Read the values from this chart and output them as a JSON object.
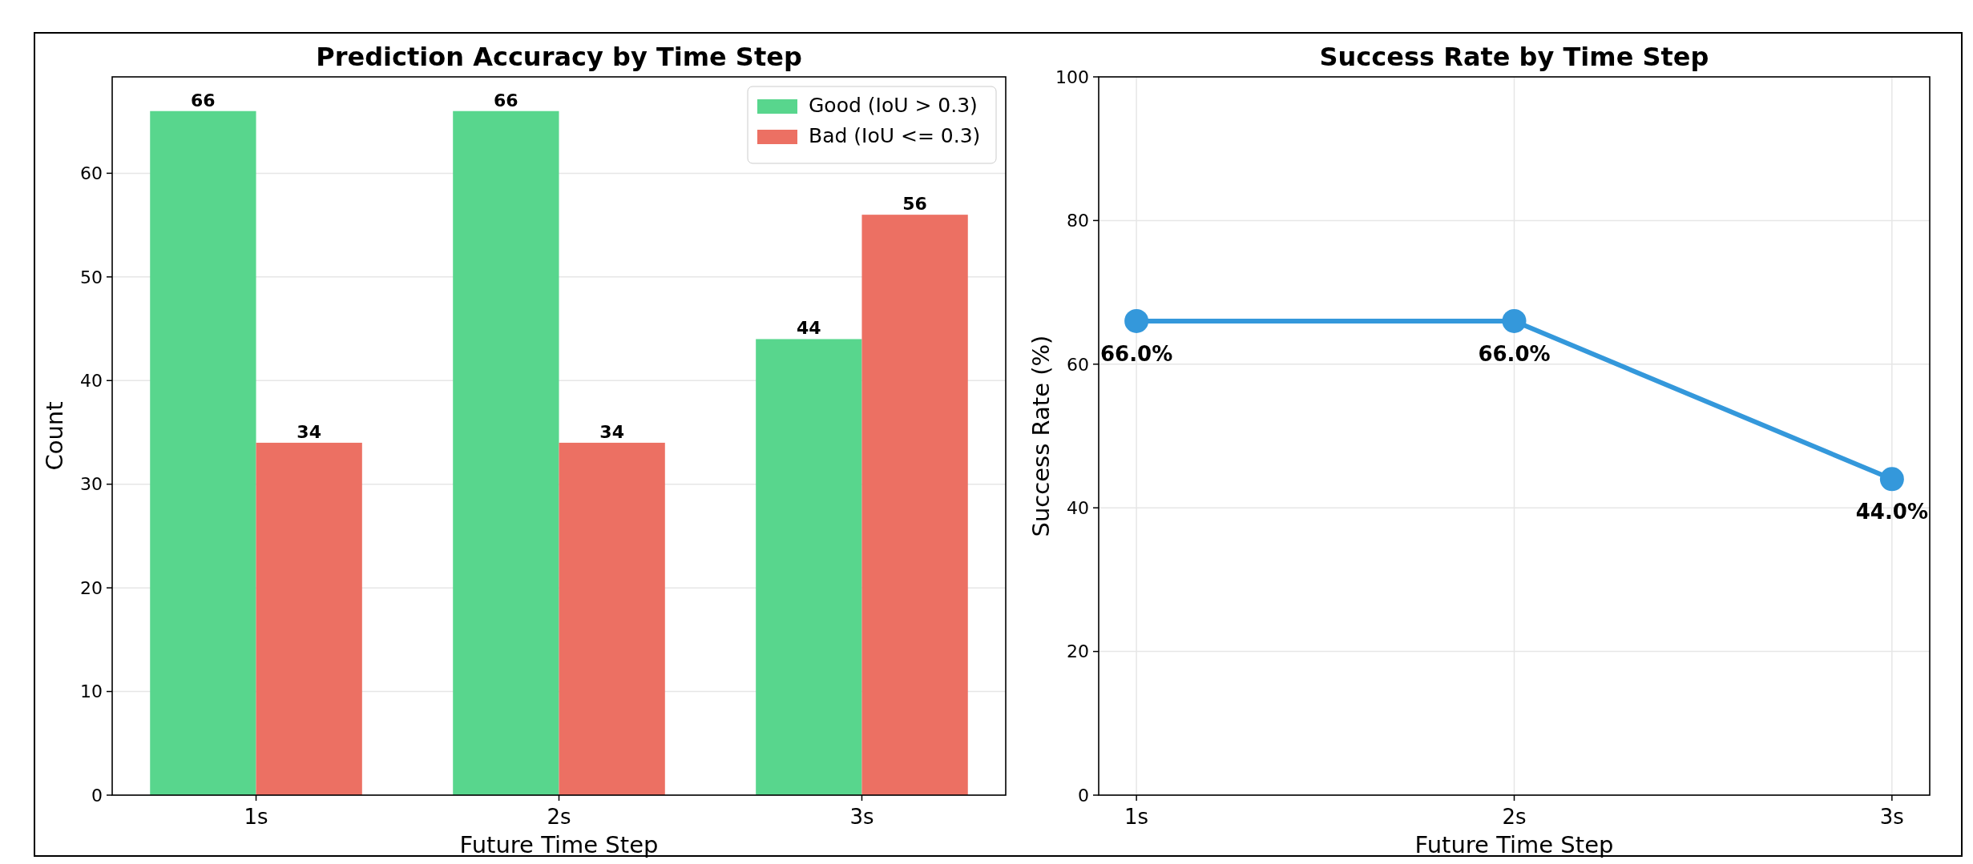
{
  "chart_data": [
    {
      "type": "bar",
      "title": "Prediction Accuracy by Time Step",
      "xlabel": "Future Time Step",
      "ylabel": "Count",
      "categories": [
        "1s",
        "2s",
        "3s"
      ],
      "series": [
        {
          "name": "Good (IoU > 0.3)",
          "color": "#58d68d",
          "values": [
            66,
            66,
            44
          ]
        },
        {
          "name": "Bad (IoU <= 0.3)",
          "color": "#ec7063",
          "values": [
            34,
            34,
            56
          ]
        }
      ],
      "ylim": [
        0,
        69.3
      ],
      "yticks": [
        0,
        10,
        20,
        30,
        40,
        50,
        60
      ],
      "grid": "y",
      "legend": "top right",
      "data_labels": true
    },
    {
      "type": "line",
      "title": "Success Rate by Time Step",
      "xlabel": "Future Time Step",
      "ylabel": "Success Rate (%)",
      "categories": [
        "1s",
        "2s",
        "3s"
      ],
      "values": [
        66,
        66,
        44
      ],
      "color": "#3498db",
      "value_labels": [
        "66.0%",
        "66.0%",
        "44.0%"
      ],
      "ylim": [
        0,
        100
      ],
      "yticks": [
        0,
        20,
        40,
        60,
        80,
        100
      ],
      "grid": true,
      "marker": "circle",
      "line_style": "solid"
    }
  ]
}
